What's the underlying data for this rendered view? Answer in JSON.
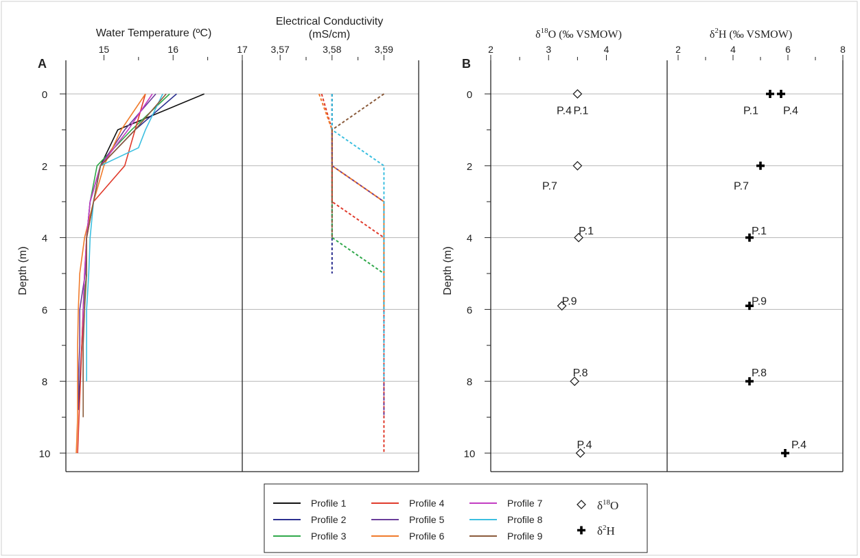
{
  "figure": {
    "frame_color": "#000000",
    "grid_color": "#b5b5b5"
  },
  "legend": {
    "profiles": [
      {
        "label": "Profile 1",
        "color": "#111111"
      },
      {
        "label": "Profile 2",
        "color": "#2b2f8f"
      },
      {
        "label": "Profile 3",
        "color": "#2fa84a"
      },
      {
        "label": "Profile 4",
        "color": "#e03a2b"
      },
      {
        "label": "Profile 5",
        "color": "#6a3d9a"
      },
      {
        "label": "Profile 6",
        "color": "#f07a2a"
      },
      {
        "label": "Profile 7",
        "color": "#c33cc3"
      },
      {
        "label": "Profile 8",
        "color": "#3bbfe0"
      },
      {
        "label": "Profile 9",
        "color": "#8a5a3a"
      }
    ],
    "o18_marker": "diamond-icon",
    "h2_marker": "plus-icon",
    "o18_delta": "δ",
    "o18_super": "18",
    "o18_elem": "O",
    "h2_delta": "δ",
    "h2_super": "2",
    "h2_elem": "H"
  },
  "chart_data": [
    {
      "panel_letter": "A",
      "type": "line",
      "title": "Water Temperature (ºC)",
      "xlim": [
        14.45,
        17
      ],
      "xticks": [
        15,
        16,
        17
      ],
      "xtick_labels": [
        "15",
        "16",
        "17"
      ],
      "ylabel": "Depth (m)",
      "ylim": [
        0,
        10.5
      ],
      "yticks": [
        0,
        2,
        4,
        6,
        8,
        10
      ],
      "ytick_labels": [
        "0",
        "2",
        "4",
        "6",
        "8",
        "10"
      ],
      "grid": true,
      "series": [
        {
          "name": "Profile 1",
          "depth": [
            0,
            1,
            2,
            3,
            4
          ],
          "values": [
            16.45,
            15.2,
            14.95,
            14.85,
            14.75
          ]
        },
        {
          "name": "Profile 2",
          "depth": [
            0,
            1,
            2,
            3,
            4,
            5,
            6,
            7,
            8,
            8.8
          ],
          "values": [
            16.05,
            15.45,
            14.95,
            14.8,
            14.75,
            14.75,
            14.7,
            14.68,
            14.65,
            14.63
          ]
        },
        {
          "name": "Profile 3",
          "depth": [
            0,
            1,
            2,
            3,
            4,
            5,
            6,
            7,
            8
          ],
          "values": [
            15.95,
            15.4,
            14.9,
            14.8,
            14.75,
            14.75,
            14.7,
            14.7,
            14.7
          ]
        },
        {
          "name": "Profile 4",
          "depth": [
            0,
            1,
            2,
            3,
            4,
            5,
            6,
            7,
            8,
            9,
            10
          ],
          "values": [
            15.6,
            15.45,
            15.3,
            14.85,
            14.75,
            14.72,
            14.7,
            14.68,
            14.66,
            14.64,
            14.62
          ]
        },
        {
          "name": "Profile 5",
          "depth": [
            0,
            1,
            2,
            3,
            4,
            5,
            6,
            7,
            8,
            8.8
          ],
          "values": [
            15.75,
            15.3,
            14.95,
            14.8,
            14.75,
            14.73,
            14.65,
            14.65,
            14.63,
            14.63
          ]
        },
        {
          "name": "Profile 6",
          "depth": [
            0,
            1,
            2,
            3,
            4,
            5,
            6,
            7,
            8,
            9,
            10
          ],
          "values": [
            15.6,
            15.25,
            15.0,
            14.85,
            14.72,
            14.65,
            14.63,
            14.62,
            14.62,
            14.62,
            14.6
          ]
        },
        {
          "name": "Profile 7",
          "depth": [
            0,
            1,
            2,
            3,
            4,
            5,
            6,
            7,
            8
          ],
          "values": [
            15.7,
            15.35,
            14.95,
            14.8,
            14.75,
            14.72,
            14.7,
            14.7,
            14.7
          ]
        },
        {
          "name": "Profile 8",
          "depth": [
            0,
            1,
            1.5,
            2,
            3,
            4,
            5,
            6,
            7,
            8
          ],
          "values": [
            15.85,
            15.6,
            15.5,
            14.95,
            14.85,
            14.8,
            14.78,
            14.75,
            14.75,
            14.75
          ]
        },
        {
          "name": "Profile 9",
          "depth": [
            0,
            1,
            2,
            3,
            4,
            5,
            6,
            7,
            8,
            9
          ],
          "values": [
            15.9,
            15.45,
            14.95,
            14.85,
            14.75,
            14.75,
            14.72,
            14.7,
            14.7,
            14.7
          ]
        }
      ]
    },
    {
      "type": "line",
      "line_style": "dashed",
      "title": "Electrical Conductivity",
      "title_line2": "(mS/cm)",
      "xlim": [
        3.5627,
        3.5967
      ],
      "xticks": [
        3.57,
        3.58,
        3.59
      ],
      "xtick_labels": [
        "3,57",
        "3,58",
        "3,59"
      ],
      "ylim": [
        0,
        10.5
      ],
      "grid": true,
      "series": [
        {
          "name": "Profile 2",
          "depth": [
            0,
            1,
            2,
            3,
            4,
            5
          ],
          "values": [
            3.58,
            3.58,
            3.58,
            3.58,
            3.58,
            3.58
          ]
        },
        {
          "name": "Profile 3",
          "depth": [
            0,
            1,
            2,
            3,
            4,
            5,
            6
          ],
          "values": [
            3.58,
            3.58,
            3.58,
            3.58,
            3.58,
            3.59,
            3.59
          ]
        },
        {
          "name": "Profile 4",
          "depth": [
            0,
            1,
            2,
            3,
            4,
            5,
            6,
            7,
            8,
            9,
            10
          ],
          "values": [
            3.578,
            3.58,
            3.58,
            3.58,
            3.59,
            3.59,
            3.59,
            3.59,
            3.59,
            3.59,
            3.59
          ]
        },
        {
          "name": "Profile 5",
          "depth": [
            0,
            1,
            2,
            3,
            4,
            5,
            6,
            7,
            8,
            9
          ],
          "values": [
            3.58,
            3.58,
            3.58,
            3.59,
            3.59,
            3.59,
            3.59,
            3.59,
            3.59,
            3.59
          ]
        },
        {
          "name": "Profile 6",
          "depth": [
            0,
            1,
            2,
            3,
            4,
            5,
            6
          ],
          "values": [
            3.5775,
            3.58,
            3.58,
            3.59,
            3.59,
            3.59,
            3.59
          ]
        },
        {
          "name": "Profile 8",
          "depth": [
            0,
            1,
            2,
            3,
            4,
            5,
            6,
            7,
            8
          ],
          "values": [
            3.58,
            3.58,
            3.59,
            3.59,
            3.59,
            3.59,
            3.59,
            3.59,
            3.59
          ]
        },
        {
          "name": "Profile 9",
          "depth": [
            0,
            1,
            2,
            3,
            4
          ],
          "values": [
            3.59,
            3.58,
            3.58,
            3.58,
            3.58
          ]
        }
      ]
    },
    {
      "panel_letter": "B",
      "type": "scatter",
      "title_delta": "δ",
      "title_super": "18",
      "title_rest": "O (‰ VSMOW)",
      "xlim": [
        2,
        5.05
      ],
      "xticks": [
        2,
        3,
        4
      ],
      "xtick_labels": [
        "2",
        "3",
        "4"
      ],
      "ylabel": "Depth (m)",
      "ylim": [
        0,
        10.5
      ],
      "yticks": [
        0,
        2,
        4,
        6,
        8,
        10
      ],
      "ytick_labels": [
        "0",
        "2",
        "4",
        "6",
        "8",
        "10"
      ],
      "grid": true,
      "points": [
        {
          "x": 3.5,
          "depth": 0
        },
        {
          "x": 3.5,
          "depth": 2
        },
        {
          "x": 3.52,
          "depth": 4
        },
        {
          "x": 3.23,
          "depth": 5.9
        },
        {
          "x": 3.45,
          "depth": 8
        },
        {
          "x": 3.55,
          "depth": 10
        }
      ],
      "annotations": [
        {
          "text": "P.4",
          "x": 3.27,
          "depth": 0.45
        },
        {
          "text": "P.1",
          "x": 3.56,
          "depth": 0.45
        },
        {
          "text": "P.7",
          "x": 3.02,
          "depth": 2.55
        },
        {
          "text": "P.1",
          "x": 3.65,
          "depth": 3.8
        },
        {
          "text": "P.9",
          "x": 3.36,
          "depth": 5.75
        },
        {
          "text": "P.8",
          "x": 3.55,
          "depth": 7.75
        },
        {
          "text": "P.4",
          "x": 3.62,
          "depth": 9.75
        }
      ]
    },
    {
      "type": "scatter",
      "title_delta": "δ",
      "title_super": "2",
      "title_rest": "H (‰ VSMOW)",
      "xlim": [
        1.6,
        8
      ],
      "xticks": [
        2,
        4,
        6,
        8
      ],
      "xtick_labels": [
        "2",
        "4",
        "6",
        "8"
      ],
      "ylim": [
        0,
        10.5
      ],
      "grid": true,
      "points": [
        {
          "x": 5.35,
          "depth": 0
        },
        {
          "x": 5.75,
          "depth": 0
        },
        {
          "x": 5.0,
          "depth": 2
        },
        {
          "x": 4.6,
          "depth": 4
        },
        {
          "x": 4.6,
          "depth": 5.9
        },
        {
          "x": 4.6,
          "depth": 8
        },
        {
          "x": 5.9,
          "depth": 10
        }
      ],
      "annotations": [
        {
          "text": "P.1",
          "x": 4.65,
          "depth": 0.45
        },
        {
          "text": "P.4",
          "x": 6.1,
          "depth": 0.45
        },
        {
          "text": "P.7",
          "x": 4.3,
          "depth": 2.55
        },
        {
          "text": "P.1",
          "x": 4.95,
          "depth": 3.8
        },
        {
          "text": "P.9",
          "x": 4.95,
          "depth": 5.75
        },
        {
          "text": "P.8",
          "x": 4.95,
          "depth": 7.75
        },
        {
          "text": "P.4",
          "x": 6.4,
          "depth": 9.75
        }
      ]
    }
  ]
}
